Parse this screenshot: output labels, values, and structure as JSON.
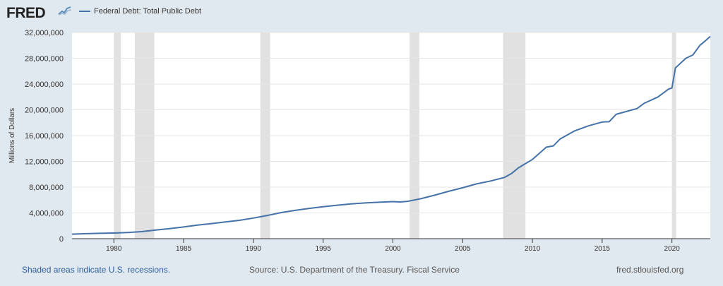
{
  "brand": {
    "logo_text": "FRED",
    "logo_icon": "fred-mini-graph-icon"
  },
  "colors": {
    "series": "#4572a7",
    "recession": "#e1e1e1",
    "background": "#e1e9f0",
    "link": "#2f5d96"
  },
  "footer": {
    "recession_note": "Shaded areas indicate U.S. recessions.",
    "source": "Source: U.S. Department of the Treasury. Fiscal Service",
    "site": "fred.stlouisfed.org"
  },
  "chart_data": {
    "type": "line",
    "title": "",
    "xlabel": "",
    "ylabel": "Millions of Dollars",
    "xlim": [
      1977.0,
      2022.75
    ],
    "ylim": [
      0,
      32000000
    ],
    "yticks": [
      0,
      4000000,
      8000000,
      12000000,
      16000000,
      20000000,
      24000000,
      28000000,
      32000000
    ],
    "ytick_labels": [
      "0",
      "4,000,000",
      "8,000,000",
      "12,000,000",
      "16,000,000",
      "20,000,000",
      "24,000,000",
      "28,000,000",
      "32,000,000"
    ],
    "xticks": [
      1980,
      1985,
      1990,
      1995,
      2000,
      2005,
      2010,
      2015,
      2020
    ],
    "xtick_labels": [
      "1980",
      "1985",
      "1990",
      "1995",
      "2000",
      "2005",
      "2010",
      "2015",
      "2020"
    ],
    "grid": true,
    "legend": "top-left",
    "recessions": [
      [
        1980.0,
        1980.5
      ],
      [
        1981.5,
        1982.9
      ],
      [
        1990.5,
        1991.2
      ],
      [
        2001.2,
        2001.9
      ],
      [
        2007.9,
        2009.5
      ],
      [
        2020.0,
        2020.3
      ]
    ],
    "series": [
      {
        "name": "Federal Debt: Total Public Debt",
        "points": [
          [
            1977.0,
            700000
          ],
          [
            1978.0,
            780000
          ],
          [
            1979.0,
            830000
          ],
          [
            1980.0,
            880000
          ],
          [
            1981.0,
            960000
          ],
          [
            1982.0,
            1100000
          ],
          [
            1983.0,
            1350000
          ],
          [
            1984.0,
            1570000
          ],
          [
            1985.0,
            1820000
          ],
          [
            1986.0,
            2120000
          ],
          [
            1987.0,
            2350000
          ],
          [
            1988.0,
            2600000
          ],
          [
            1989.0,
            2850000
          ],
          [
            1990.0,
            3200000
          ],
          [
            1991.0,
            3600000
          ],
          [
            1992.0,
            4050000
          ],
          [
            1993.0,
            4400000
          ],
          [
            1994.0,
            4700000
          ],
          [
            1995.0,
            4950000
          ],
          [
            1996.0,
            5200000
          ],
          [
            1997.0,
            5400000
          ],
          [
            1998.0,
            5550000
          ],
          [
            1999.0,
            5650000
          ],
          [
            2000.0,
            5750000
          ],
          [
            2000.5,
            5700000
          ],
          [
            2001.0,
            5770000
          ],
          [
            2002.0,
            6200000
          ],
          [
            2003.0,
            6750000
          ],
          [
            2004.0,
            7350000
          ],
          [
            2005.0,
            7900000
          ],
          [
            2006.0,
            8500000
          ],
          [
            2007.0,
            8950000
          ],
          [
            2008.0,
            9500000
          ],
          [
            2008.5,
            10100000
          ],
          [
            2009.0,
            11000000
          ],
          [
            2010.0,
            12300000
          ],
          [
            2011.0,
            14200000
          ],
          [
            2011.5,
            14400000
          ],
          [
            2012.0,
            15500000
          ],
          [
            2013.0,
            16700000
          ],
          [
            2014.0,
            17500000
          ],
          [
            2015.0,
            18100000
          ],
          [
            2015.5,
            18150000
          ],
          [
            2016.0,
            19300000
          ],
          [
            2017.0,
            19900000
          ],
          [
            2017.5,
            20200000
          ],
          [
            2018.0,
            21000000
          ],
          [
            2019.0,
            22000000
          ],
          [
            2019.75,
            23200000
          ],
          [
            2020.0,
            23400000
          ],
          [
            2020.25,
            26500000
          ],
          [
            2021.0,
            28000000
          ],
          [
            2021.5,
            28500000
          ],
          [
            2022.0,
            30000000
          ],
          [
            2022.5,
            30900000
          ],
          [
            2022.75,
            31400000
          ]
        ]
      }
    ]
  }
}
